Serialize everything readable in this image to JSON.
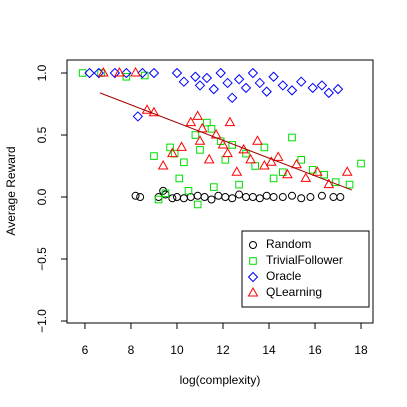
{
  "chart_data": {
    "type": "scatter",
    "xlabel": "log(complexity)",
    "ylabel": "Average Reward",
    "xlim": [
      5.22,
      18.52
    ],
    "ylim": [
      -1.016,
      1.105
    ],
    "xticks": [
      6,
      8,
      10,
      12,
      14,
      16,
      18
    ],
    "yticks": [
      {
        "value": -1,
        "label": "−1.0"
      },
      {
        "value": -0.5,
        "label": "−0.5"
      },
      {
        "value": 0,
        "label": "0.0"
      },
      {
        "value": 0.5,
        "label": "0.5"
      },
      {
        "value": 1,
        "label": "1.0"
      }
    ],
    "legend": "bottomright",
    "series": [
      {
        "name": "Random",
        "color": "#000000",
        "marker": "circle",
        "x": [
          8.2,
          8.4,
          9.2,
          9.4,
          9.5,
          9.8,
          10.0,
          10.3,
          10.6,
          10.9,
          11.2,
          11.5,
          11.8,
          12.1,
          12.4,
          12.7,
          13.0,
          13.3,
          13.6,
          13.9,
          14.2,
          14.6,
          15.0,
          15.4,
          15.8,
          16.3,
          16.8,
          17.1
        ],
        "y": [
          0.01,
          0.0,
          0.0,
          0.05,
          0.02,
          -0.01,
          0.0,
          -0.01,
          0.0,
          0.01,
          0.0,
          -0.02,
          0.01,
          0.0,
          -0.01,
          0.02,
          0.0,
          0.0,
          -0.01,
          0.01,
          0.0,
          0.0,
          0.01,
          -0.01,
          0.0,
          0.01,
          0.0,
          0.0
        ]
      },
      {
        "name": "TrivialFollower",
        "color": "#00dd00",
        "marker": "square",
        "x": [
          5.9,
          6.7,
          7.8,
          8.6,
          9.0,
          9.2,
          9.5,
          9.7,
          9.9,
          10.1,
          10.3,
          10.5,
          10.8,
          11.0,
          11.3,
          11.6,
          11.9,
          12.1,
          12.4,
          12.7,
          13.0,
          13.4,
          13.8,
          14.2,
          14.6,
          15.0,
          15.4,
          15.9,
          16.4,
          16.9,
          17.5,
          18.0,
          10.9,
          11.5
        ],
        "y": [
          1.0,
          1.0,
          0.97,
          0.98,
          0.33,
          -0.02,
          0.03,
          0.4,
          0.35,
          0.15,
          0.28,
          0.05,
          0.5,
          0.38,
          0.6,
          0.08,
          0.45,
          0.3,
          0.42,
          0.1,
          0.35,
          0.25,
          0.4,
          0.15,
          0.2,
          0.48,
          0.3,
          0.22,
          0.18,
          0.12,
          0.1,
          0.27,
          -0.06,
          0.55
        ]
      },
      {
        "name": "Oracle",
        "color": "#0000ff",
        "marker": "diamond",
        "x": [
          6.2,
          6.6,
          7.3,
          7.8,
          8.5,
          9.0,
          10.0,
          10.3,
          10.8,
          11.0,
          11.3,
          11.6,
          11.9,
          12.2,
          12.4,
          12.7,
          13.0,
          13.3,
          13.6,
          13.9,
          14.2,
          14.6,
          15.0,
          15.4,
          15.9,
          16.3,
          16.6,
          17.0,
          8.3
        ],
        "y": [
          1.0,
          1.0,
          1.0,
          1.0,
          1.0,
          1.0,
          1.0,
          0.93,
          0.97,
          0.9,
          0.96,
          0.87,
          1.0,
          0.92,
          0.8,
          0.95,
          0.88,
          1.0,
          0.92,
          0.85,
          0.97,
          0.9,
          0.86,
          0.93,
          0.88,
          0.9,
          0.84,
          0.87,
          0.65
        ]
      },
      {
        "name": "QLearning",
        "color": "#ff0000",
        "marker": "triangle",
        "x": [
          6.8,
          7.5,
          8.2,
          8.7,
          9.0,
          9.4,
          9.8,
          10.2,
          10.6,
          10.9,
          11.1,
          11.4,
          11.7,
          12.0,
          12.3,
          12.6,
          12.9,
          13.2,
          13.5,
          13.8,
          14.1,
          14.4,
          14.8,
          15.2,
          15.6,
          16.1,
          16.6,
          17.4,
          11.0,
          12.2
        ],
        "y": [
          1.0,
          1.0,
          1.0,
          0.7,
          0.68,
          0.25,
          0.35,
          0.4,
          0.6,
          0.65,
          0.55,
          0.3,
          0.5,
          0.42,
          0.6,
          0.2,
          0.38,
          0.3,
          0.45,
          0.25,
          0.28,
          0.32,
          0.18,
          0.26,
          0.15,
          0.2,
          0.1,
          0.2,
          0.45,
          0.35
        ]
      }
    ],
    "fit": {
      "color": "#a00000",
      "x": [
        6.65,
        17.6
      ],
      "y": [
        0.84,
        0.056
      ]
    }
  }
}
